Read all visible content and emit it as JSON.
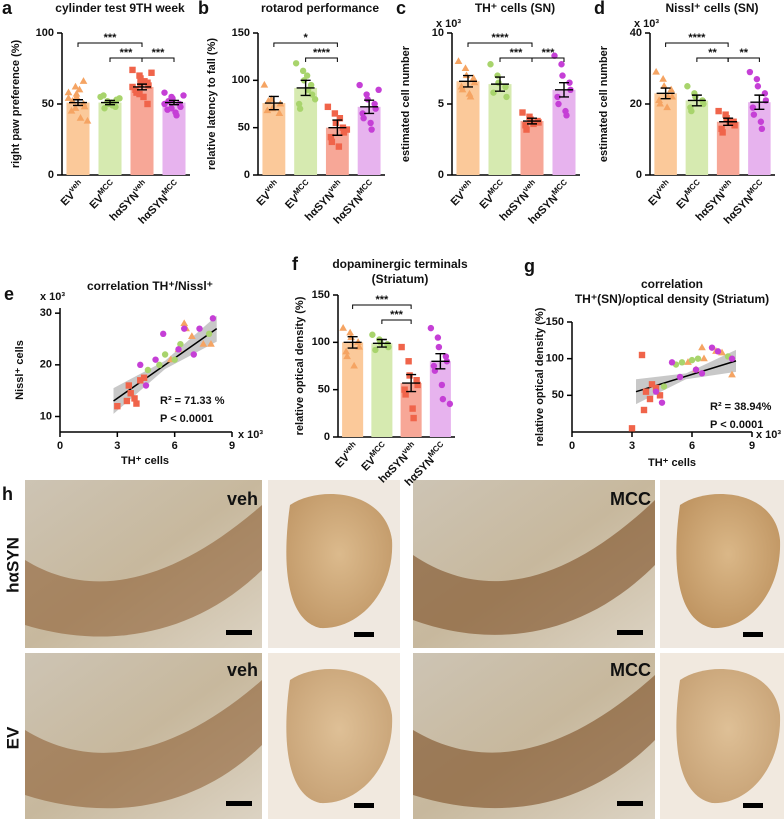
{
  "chart_data": [
    {
      "type": "bar",
      "panel": "a",
      "title": "cylinder test 9TH week",
      "ylabel": "right paw preference (%)",
      "categories": [
        {
          "main": "EV",
          "sup": "veh"
        },
        {
          "main": "EV",
          "sup": "MCC"
        },
        {
          "main": "hαSYN",
          "sup": "veh"
        },
        {
          "main": "hαSYN",
          "sup": "MCC"
        }
      ],
      "values": [
        51,
        51,
        62,
        51
      ],
      "errors": [
        2,
        1.5,
        2,
        1.5
      ],
      "points": [
        [
          58,
          62,
          55,
          50,
          48,
          45,
          52,
          60,
          40,
          38,
          54,
          47,
          57,
          66
        ],
        [
          55,
          52,
          50,
          48,
          53,
          56,
          47,
          51,
          49,
          54
        ],
        [
          74,
          70,
          68,
          65,
          63,
          60,
          58,
          55,
          66,
          72,
          62,
          57,
          64,
          50
        ],
        [
          58,
          55,
          53,
          50,
          48,
          46,
          52,
          44,
          42,
          56,
          50,
          47,
          54
        ]
      ],
      "colors": [
        "#fbc99a",
        "#d6eab0",
        "#f7a797",
        "#e7b3ee"
      ],
      "point_colors": [
        "#f5a463",
        "#a8d46c",
        "#f0644a",
        "#c53fd6"
      ],
      "markers": [
        "triangle",
        "circle",
        "square",
        "circle"
      ],
      "ylim": [
        0,
        100
      ],
      "yticks": [
        0,
        50,
        100
      ],
      "brackets": [
        {
          "from": 0,
          "to": 2,
          "label": "***"
        },
        {
          "from": 1,
          "to": 2,
          "label": "***"
        },
        {
          "from": 2,
          "to": 3,
          "label": "***"
        }
      ]
    },
    {
      "type": "bar",
      "panel": "b",
      "title": "rotarod performance",
      "ylabel": "relative latency to fall (%)",
      "categories": [
        {
          "main": "EV",
          "sup": "veh"
        },
        {
          "main": "EV",
          "sup": "MCC"
        },
        {
          "main": "hαSYN",
          "sup": "veh"
        },
        {
          "main": "hαSYN",
          "sup": "MCC"
        }
      ],
      "values": [
        76,
        92,
        50,
        72
      ],
      "errors": [
        7,
        8,
        8,
        7
      ],
      "points": [
        [
          95,
          80,
          70,
          65,
          75,
          68,
          78
        ],
        [
          118,
          110,
          100,
          95,
          85,
          75,
          70,
          105,
          90,
          80
        ],
        [
          72,
          65,
          55,
          50,
          45,
          40,
          35,
          30,
          60,
          48
        ],
        [
          95,
          85,
          80,
          75,
          70,
          65,
          60,
          55,
          48,
          90
        ]
      ],
      "colors": [
        "#fbc99a",
        "#d6eab0",
        "#f7a797",
        "#e7b3ee"
      ],
      "point_colors": [
        "#f5a463",
        "#a8d46c",
        "#f0644a",
        "#c53fd6"
      ],
      "markers": [
        "triangle",
        "circle",
        "square",
        "circle"
      ],
      "ylim": [
        0,
        150
      ],
      "yticks": [
        0,
        50,
        100,
        150
      ],
      "brackets": [
        {
          "from": 0,
          "to": 2,
          "label": "*"
        },
        {
          "from": 1,
          "to": 2,
          "label": "****"
        }
      ]
    },
    {
      "type": "bar",
      "panel": "c",
      "title": "TH⁺ cells (SN)",
      "ylabel": "estimated cell number",
      "y_multiplier": "x 10³",
      "categories": [
        {
          "main": "EV",
          "sup": "veh"
        },
        {
          "main": "EV",
          "sup": "MCC"
        },
        {
          "main": "hαSYN",
          "sup": "veh"
        },
        {
          "main": "hαSYN",
          "sup": "MCC"
        }
      ],
      "values": [
        6.6,
        6.4,
        3.8,
        6.0
      ],
      "errors": [
        0.4,
        0.5,
        0.2,
        0.5
      ],
      "points": [
        [
          8,
          7.5,
          7,
          6.8,
          6.5,
          6.2,
          6,
          5.7,
          5.5
        ],
        [
          7.8,
          7,
          6.5,
          6.2,
          5.5,
          5.8
        ],
        [
          4.4,
          4.1,
          3.9,
          3.8,
          3.7,
          3.5,
          3.2,
          3.6
        ],
        [
          8.4,
          7.8,
          7,
          6.5,
          6,
          5.5,
          5,
          4.5,
          4.2
        ]
      ],
      "colors": [
        "#fbc99a",
        "#d6eab0",
        "#f7a797",
        "#e7b3ee"
      ],
      "point_colors": [
        "#f5a463",
        "#a8d46c",
        "#f0644a",
        "#c53fd6"
      ],
      "markers": [
        "triangle",
        "circle",
        "square",
        "circle"
      ],
      "ylim": [
        0,
        10
      ],
      "yticks": [
        0,
        5,
        10
      ],
      "brackets": [
        {
          "from": 0,
          "to": 2,
          "label": "****"
        },
        {
          "from": 1,
          "to": 2,
          "label": "***"
        },
        {
          "from": 2,
          "to": 3,
          "label": "***"
        }
      ]
    },
    {
      "type": "bar",
      "panel": "d",
      "title": "Nissl⁺ cells (SN)",
      "ylabel": "estimated cell number",
      "y_multiplier": "x 10³",
      "categories": [
        {
          "main": "EV",
          "sup": "veh"
        },
        {
          "main": "EV",
          "sup": "MCC"
        },
        {
          "main": "hαSYN",
          "sup": "veh"
        },
        {
          "main": "hαSYN",
          "sup": "MCC"
        }
      ],
      "values": [
        23,
        21,
        15,
        20.5
      ],
      "errors": [
        1.5,
        1.5,
        1,
        2
      ],
      "points": [
        [
          29,
          27,
          25,
          24,
          22,
          21,
          20,
          19,
          22
        ],
        [
          25,
          23,
          22,
          21,
          20,
          19,
          18
        ],
        [
          18,
          17,
          16,
          15,
          14,
          13,
          12,
          15
        ],
        [
          29,
          27,
          25,
          23,
          21,
          19,
          17,
          15,
          13
        ]
      ],
      "colors": [
        "#fbc99a",
        "#d6eab0",
        "#f7a797",
        "#e7b3ee"
      ],
      "point_colors": [
        "#f5a463",
        "#a8d46c",
        "#f0644a",
        "#c53fd6"
      ],
      "markers": [
        "triangle",
        "circle",
        "square",
        "circle"
      ],
      "ylim": [
        0,
        40
      ],
      "yticks": [
        0,
        20,
        40
      ],
      "brackets": [
        {
          "from": 0,
          "to": 2,
          "label": "****"
        },
        {
          "from": 1,
          "to": 2,
          "label": "**"
        },
        {
          "from": 2,
          "to": 3,
          "label": "**"
        }
      ]
    },
    {
      "type": "scatter",
      "panel": "e",
      "title": "correlation TH⁺/Nissl⁺",
      "xlabel": "TH⁺ cells",
      "ylabel": "Nissl⁺ cells",
      "x_multiplier": "x 10³",
      "y_multiplier": "x 10³",
      "series": [
        {
          "color": "#f5a463",
          "marker": "triangle",
          "x": [
            6.5,
            6.9,
            7.5,
            6.2,
            5.8,
            7.9,
            6.6
          ],
          "y": [
            28,
            25.5,
            24,
            23,
            21,
            24,
            27
          ]
        },
        {
          "color": "#a8d46c",
          "marker": "circle",
          "x": [
            5.5,
            6.3,
            6.0,
            7.8,
            5.2,
            4.6
          ],
          "y": [
            22,
            24,
            21,
            26,
            20,
            19
          ]
        },
        {
          "color": "#f0644a",
          "marker": "square",
          "x": [
            3.0,
            3.5,
            3.7,
            3.9,
            4.2,
            4.4,
            3.6,
            4.0
          ],
          "y": [
            12,
            13,
            14.5,
            13.5,
            17,
            17.5,
            16,
            12.5
          ]
        },
        {
          "color": "#c53fd6",
          "marker": "circle",
          "x": [
            8.0,
            7.0,
            6.5,
            5.4,
            5.0,
            4.2,
            4.5,
            6.2,
            7.3
          ],
          "y": [
            29,
            22,
            27,
            26,
            21,
            20,
            16,
            23,
            27
          ]
        }
      ],
      "regression": {
        "x": [
          2.8,
          8.2
        ],
        "y": [
          13,
          27
        ]
      },
      "confidence_band": {
        "x": [
          2.8,
          5.5,
          8.2
        ],
        "lower": [
          10.5,
          19.2,
          24.5
        ],
        "upper": [
          15.5,
          20.8,
          29.5
        ]
      },
      "annotations": [
        "R² = 71.33 %",
        "P < 0.0001"
      ],
      "xlim": [
        0,
        9
      ],
      "xticks": [
        0,
        3,
        6,
        9
      ],
      "ylim": [
        7,
        31
      ],
      "yticks": [
        10,
        20,
        30
      ]
    },
    {
      "type": "bar",
      "panel": "f",
      "title": "dopaminergic terminals",
      "subtitle": "(Striatum)",
      "ylabel": "relative optical density (%)",
      "categories": [
        {
          "main": "EV",
          "sup": "veh"
        },
        {
          "main": "EV",
          "sup": "MCC"
        },
        {
          "main": "hαSYN",
          "sup": "veh"
        },
        {
          "main": "hαSYN",
          "sup": "MCC"
        }
      ],
      "values": [
        100,
        99,
        57,
        80
      ],
      "errors": [
        6,
        4,
        9,
        8
      ],
      "points": [
        [
          115,
          110,
          105,
          100,
          95,
          90,
          85,
          75
        ],
        [
          108,
          103,
          100,
          98,
          95,
          92
        ],
        [
          95,
          80,
          65,
          60,
          55,
          50,
          45,
          30,
          20
        ],
        [
          115,
          105,
          95,
          85,
          80,
          75,
          70,
          55,
          40,
          35
        ]
      ],
      "colors": [
        "#fbc99a",
        "#d6eab0",
        "#f7a797",
        "#e7b3ee"
      ],
      "point_colors": [
        "#f5a463",
        "#a8d46c",
        "#f0644a",
        "#c53fd6"
      ],
      "markers": [
        "triangle",
        "circle",
        "square",
        "circle"
      ],
      "ylim": [
        0,
        150
      ],
      "yticks": [
        0,
        50,
        100,
        150
      ],
      "brackets": [
        {
          "from": 0,
          "to": 2,
          "label": "***"
        },
        {
          "from": 1,
          "to": 2,
          "label": "***"
        }
      ]
    },
    {
      "type": "scatter",
      "panel": "g",
      "title": "correlation",
      "subtitle": "TH⁺(SN)/optical density (Striatum)",
      "xlabel": "TH⁺ cells",
      "ylabel": "relative optical density (%)",
      "x_multiplier": "x 10³",
      "series": [
        {
          "color": "#f5a463",
          "marker": "triangle",
          "x": [
            6.5,
            7.5,
            6.2,
            5.8,
            8.0,
            6.6,
            7.2
          ],
          "y": [
            115,
            108,
            85,
            95,
            78,
            100,
            110
          ]
        },
        {
          "color": "#a8d46c",
          "marker": "circle",
          "x": [
            5.5,
            6.3,
            6.0,
            7.8,
            5.2,
            4.6
          ],
          "y": [
            95,
            100,
            98,
            103,
            92,
            62
          ]
        },
        {
          "color": "#f0644a",
          "marker": "square",
          "x": [
            3.0,
            3.5,
            3.7,
            3.9,
            4.2,
            4.4,
            3.6,
            4.0
          ],
          "y": [
            5,
            105,
            55,
            45,
            60,
            50,
            30,
            65
          ]
        },
        {
          "color": "#c53fd6",
          "marker": "circle",
          "x": [
            8.0,
            7.0,
            6.5,
            5.4,
            5.0,
            4.2,
            4.5,
            6.2,
            7.3
          ],
          "y": [
            100,
            115,
            80,
            75,
            95,
            55,
            40,
            85,
            110
          ]
        }
      ],
      "regression": {
        "x": [
          3.2,
          8.2
        ],
        "y": [
          55,
          97
        ]
      },
      "confidence_band": {
        "x": [
          3.2,
          5.7,
          8.2
        ],
        "lower": [
          38,
          72,
          82
        ],
        "upper": [
          72,
          80,
          112
        ]
      },
      "annotations": [
        "R² = 38.94%",
        "P < 0.0001"
      ],
      "xlim": [
        0,
        9
      ],
      "xticks": [
        0,
        3,
        6,
        9
      ],
      "ylim": [
        0,
        150
      ],
      "yticks": [
        50,
        100,
        150
      ]
    }
  ],
  "panel_h": {
    "panel": "h",
    "rows": [
      "hαSYN",
      "EV"
    ],
    "conditions": [
      "veh",
      "MCC"
    ]
  }
}
